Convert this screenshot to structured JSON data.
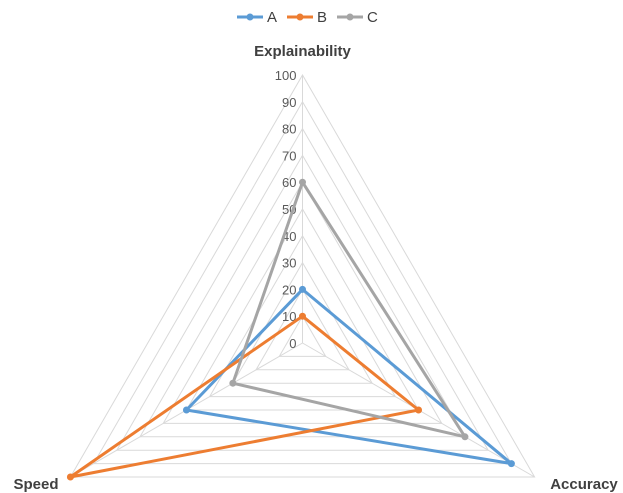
{
  "chart_data": {
    "type": "radar",
    "axes": [
      "Explainability",
      "Accuracy",
      "Speed"
    ],
    "r_range": [
      0,
      100
    ],
    "ticks": [
      "0",
      "10",
      "20",
      "30",
      "40",
      "50",
      "60",
      "70",
      "80",
      "90",
      "100"
    ],
    "grid": true,
    "legend_position": "top",
    "series": [
      {
        "name": "A",
        "color": "#5B9BD5",
        "values": [
          20,
          90,
          50
        ]
      },
      {
        "name": "B",
        "color": "#ED7D31",
        "values": [
          10,
          50,
          100
        ]
      },
      {
        "name": "C",
        "color": "#A5A5A5",
        "values": [
          60,
          70,
          30
        ]
      }
    ]
  }
}
